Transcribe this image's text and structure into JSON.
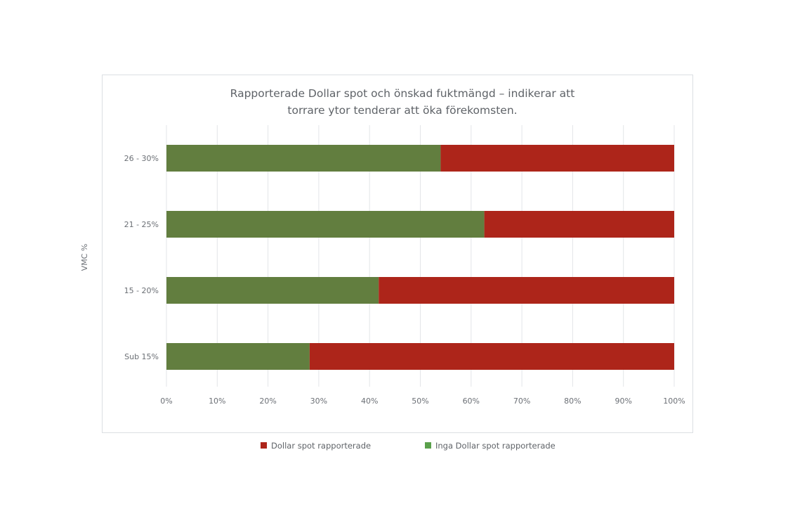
{
  "chart_data": {
    "type": "bar",
    "orientation": "horizontal",
    "stacked": true,
    "title_lines": [
      "Rapporterade Dollar spot och önskad fuktmängd – indikerar att",
      "torrare ytor tenderar att öka förekomsten."
    ],
    "ylabel": "VMC %",
    "xlabel": "",
    "categories": [
      "26 - 30%",
      "21 - 25%",
      "15 - 20%",
      "Sub 15%"
    ],
    "series": [
      {
        "name": "Inga Dollar spot rapporterade",
        "color": "#627e3f",
        "legend_color": "#5aa04b",
        "values": [
          54,
          62.6,
          41.8,
          28.2
        ]
      },
      {
        "name": "Dollar spot rapporterade",
        "color": "#ad251a",
        "legend_color": "#ad251a",
        "values": [
          46,
          37.4,
          58.2,
          71.8
        ]
      }
    ],
    "xlim": [
      0,
      100
    ],
    "xticks": [
      "0%",
      "10%",
      "20%",
      "30%",
      "40%",
      "50%",
      "60%",
      "70%",
      "80%",
      "90%",
      "100%"
    ],
    "grid": true,
    "legend": {
      "position": "bottom",
      "order": [
        "Dollar spot rapporterade",
        "Inga Dollar spot rapporterade"
      ]
    }
  }
}
